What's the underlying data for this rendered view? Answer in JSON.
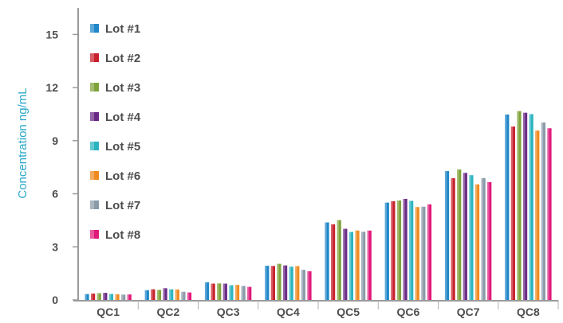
{
  "chart_data": {
    "type": "bar",
    "ylabel": "Concentration ng/mL",
    "xlabel": "",
    "title": "",
    "ylim": [
      0,
      16.5
    ],
    "yticks": [
      0,
      3,
      6,
      9,
      12,
      15
    ],
    "grid": false,
    "legend_position": "top-left",
    "categories": [
      "QC1",
      "QC2",
      "QC3",
      "QC4",
      "QC5",
      "QC6",
      "QC7",
      "QC8"
    ],
    "series": [
      {
        "name": "Lot #1",
        "color": "#1f86c8",
        "values": [
          0.33,
          0.55,
          1.0,
          1.93,
          4.38,
          5.5,
          7.28,
          10.48
        ]
      },
      {
        "name": "Lot #2",
        "color": "#c8202c",
        "values": [
          0.36,
          0.6,
          0.92,
          1.92,
          4.27,
          5.58,
          6.88,
          9.8
        ]
      },
      {
        "name": "Lot #3",
        "color": "#7fa33a",
        "values": [
          0.38,
          0.57,
          0.93,
          2.04,
          4.51,
          5.62,
          7.37,
          10.67
        ]
      },
      {
        "name": "Lot #4",
        "color": "#6a2a86",
        "values": [
          0.4,
          0.66,
          0.92,
          1.95,
          4.02,
          5.71,
          7.18,
          10.58
        ]
      },
      {
        "name": "Lot #5",
        "color": "#2bb4c0",
        "values": [
          0.34,
          0.6,
          0.83,
          1.88,
          3.84,
          5.6,
          7.05,
          10.5
        ]
      },
      {
        "name": "Lot #6",
        "color": "#f08a1f",
        "values": [
          0.32,
          0.59,
          0.85,
          1.91,
          3.92,
          5.25,
          6.53,
          9.57
        ]
      },
      {
        "name": "Lot #7",
        "color": "#8a9aa8",
        "values": [
          0.3,
          0.46,
          0.79,
          1.7,
          3.85,
          5.27,
          6.89,
          10.03
        ]
      },
      {
        "name": "Lot #8",
        "color": "#e0187a",
        "values": [
          0.31,
          0.42,
          0.74,
          1.62,
          3.92,
          5.4,
          6.66,
          9.7
        ]
      }
    ]
  }
}
